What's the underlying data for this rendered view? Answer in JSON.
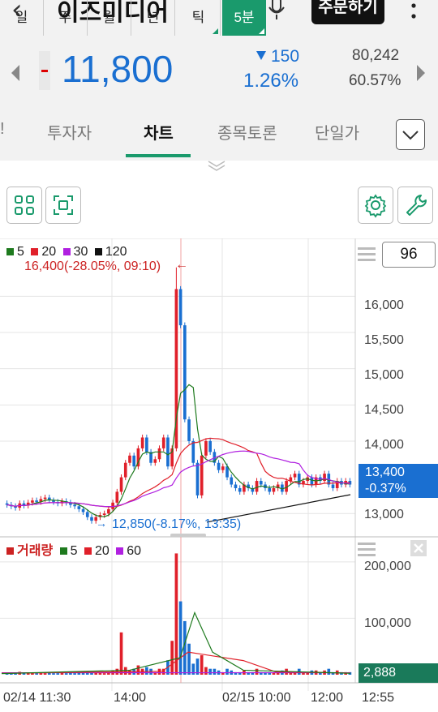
{
  "header": {
    "back_icon": "chevron-left-icon",
    "title": "이즈미디어",
    "mic_icon": "microphone-icon",
    "order_button": "주문하기",
    "menu_icon": "more-vertical-icon"
  },
  "quote": {
    "price": "11,800",
    "change": "150",
    "change_pct": "1.26%",
    "volume": "80,242",
    "volume_pct": "60.57%",
    "down_color": "#1a6fd1"
  },
  "tabs": [
    {
      "label": "!"
    },
    {
      "label": "투자자"
    },
    {
      "label": "차트"
    },
    {
      "label": "종목토론"
    },
    {
      "label": "단일가"
    }
  ],
  "toolbar": {
    "periods": [
      "일",
      "주",
      "월",
      "년",
      "틱",
      "5분"
    ],
    "active_period": "5분",
    "accent": "#1a9a6c"
  },
  "chart_data": {
    "type": "candlestick",
    "legend": [
      {
        "name": "5",
        "color": "#1e7a1e"
      },
      {
        "name": "20",
        "color": "#e0202a"
      },
      {
        "name": "30",
        "color": "#b020e0"
      },
      {
        "name": "120",
        "color": "#111111"
      }
    ],
    "high_annotation": "16,400(-28.05%, 09:10)",
    "low_annotation": "12,850(-8.17%, 13:35)",
    "count_box": "96",
    "y_ticks": [
      "16,000",
      "15,500",
      "15,000",
      "14,500",
      "14,000",
      "13,000"
    ],
    "y_tick_values": [
      16000,
      15500,
      15000,
      14500,
      14000,
      13000
    ],
    "ylim": [
      12700,
      16800
    ],
    "current_price_tag": "13,400",
    "current_change_tag": "-0.37%",
    "current_price": 13400,
    "candles_close": [
      13120,
      13100,
      13080,
      13140,
      13110,
      13150,
      13180,
      13160,
      13200,
      13220,
      13180,
      13160,
      13140,
      13170,
      13150,
      13120,
      13100,
      13060,
      13020,
      12950,
      12900,
      12950,
      12980,
      13000,
      13060,
      13150,
      13300,
      13500,
      13700,
      13800,
      13650,
      13900,
      14050,
      13850,
      13700,
      13750,
      13900,
      14050,
      13650,
      13900,
      16100,
      15600,
      14300,
      14000,
      13700,
      13250,
      13800,
      14000,
      13850,
      13700,
      13600,
      13650,
      13500,
      13400,
      13350,
      13300,
      13400,
      13350,
      13300,
      13450,
      13400,
      13350,
      13300,
      13350,
      13400,
      13300,
      13450,
      13500,
      13550,
      13400,
      13450,
      13500,
      13400,
      13500,
      13450,
      13550,
      13400,
      13350,
      13450,
      13400,
      13450,
      13400
    ],
    "volume_title": "거래량",
    "volume_legend": [
      {
        "name": "5",
        "color": "#1e7a1e"
      },
      {
        "name": "20",
        "color": "#e0202a"
      },
      {
        "name": "60",
        "color": "#b020e0"
      }
    ],
    "volume_ticks": [
      "200,000",
      "100,000"
    ],
    "volume_tick_values": [
      200000,
      100000
    ],
    "volume_tag": "2,888",
    "x_labels": [
      "02/14 11:30",
      "14:00",
      "02/15 10:00",
      "12:00",
      "12:55"
    ]
  }
}
